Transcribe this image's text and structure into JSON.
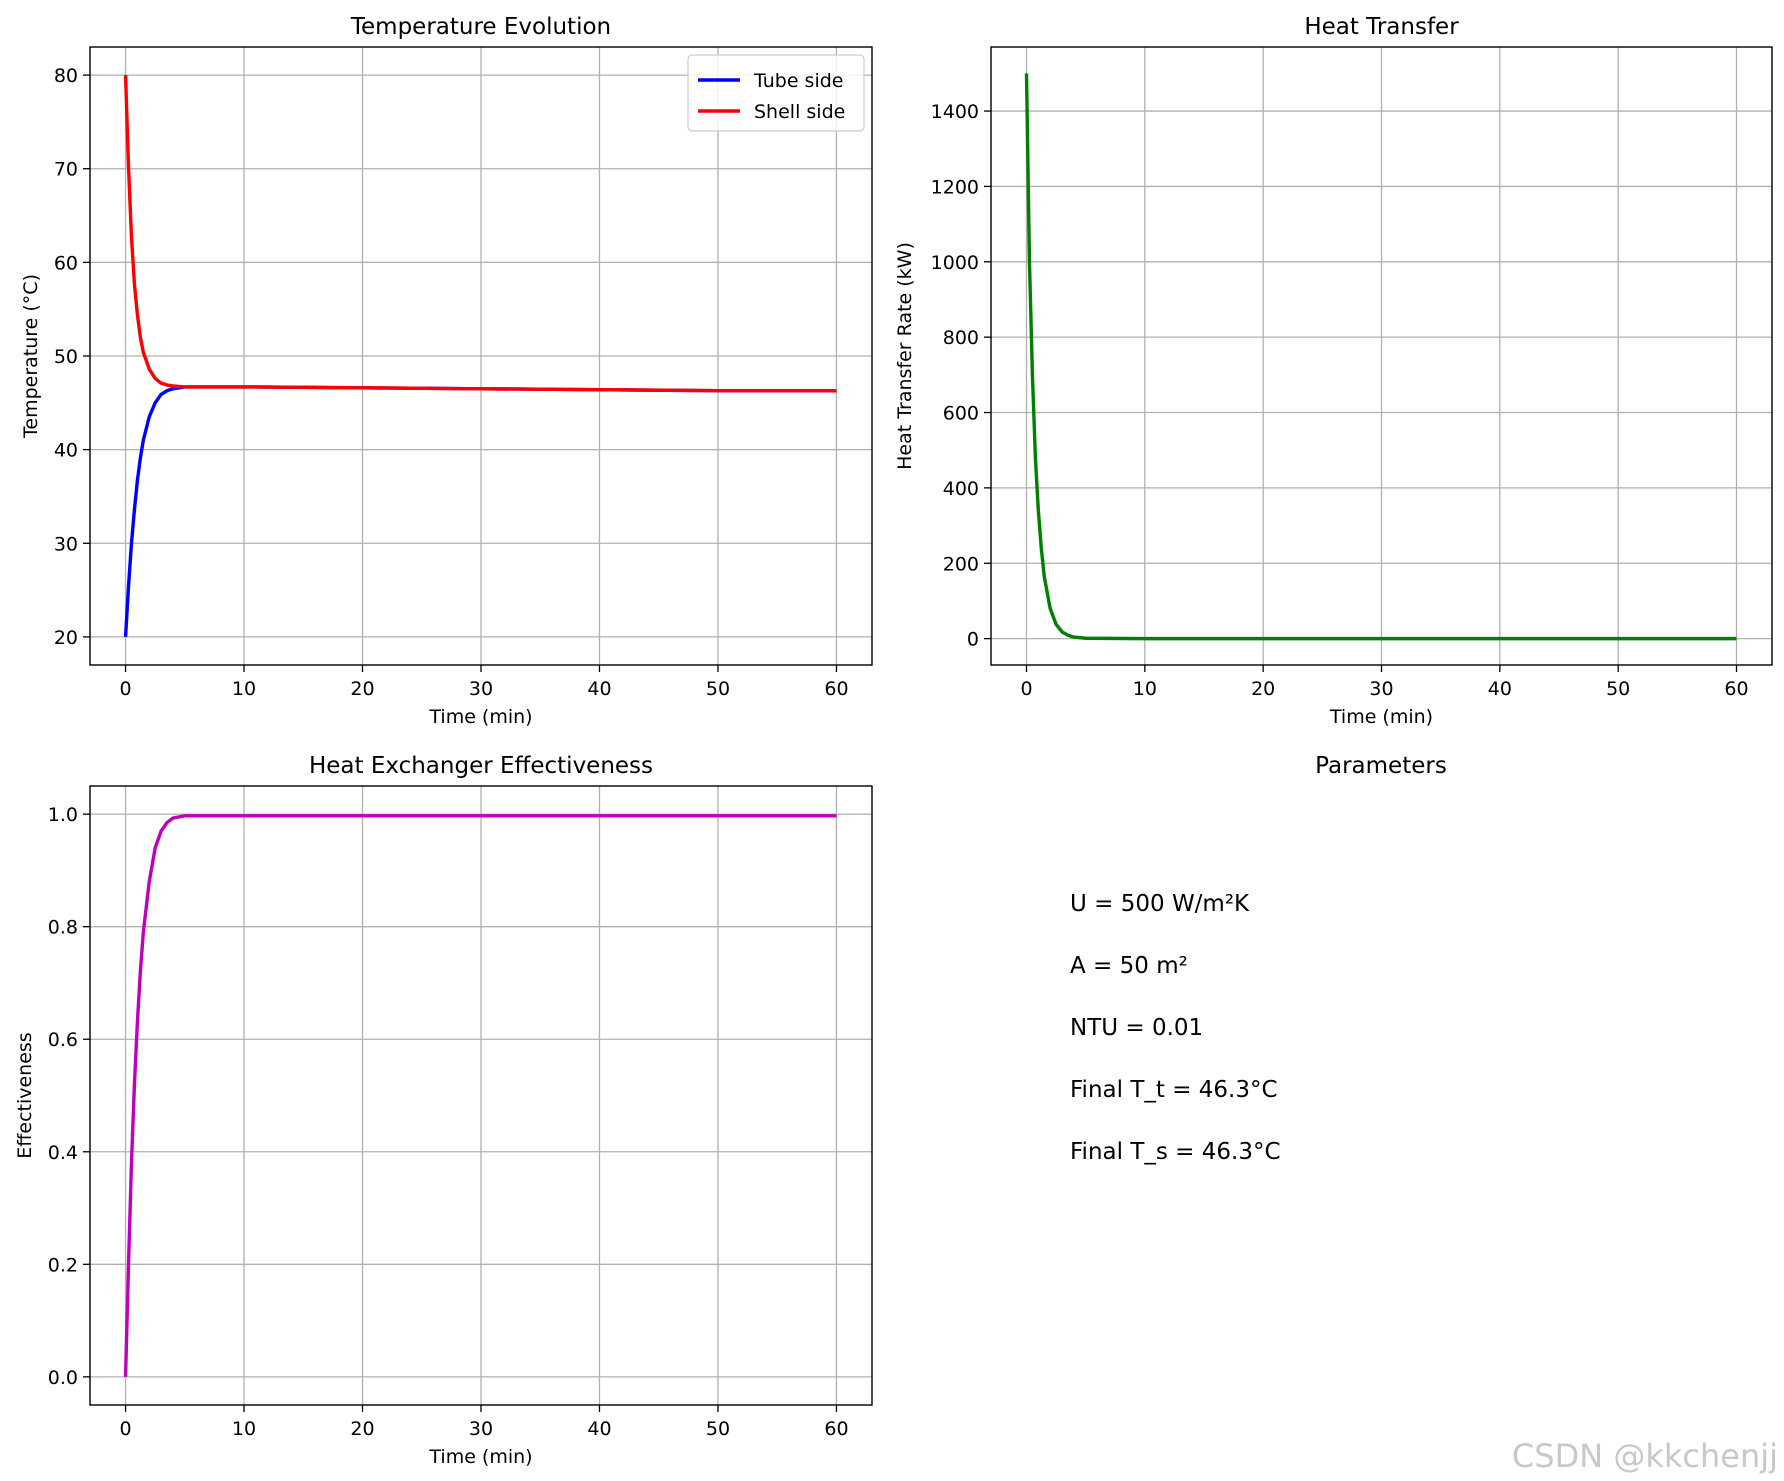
{
  "chart_data": [
    {
      "type": "line",
      "title": "Temperature Evolution",
      "xlabel": "Time (min)",
      "ylabel": "Temperature (°C)",
      "xlim": [
        -3,
        63
      ],
      "ylim": [
        17,
        83
      ],
      "xticks": [
        0,
        10,
        20,
        30,
        40,
        50,
        60
      ],
      "yticks": [
        20,
        30,
        40,
        50,
        60,
        70,
        80
      ],
      "grid": true,
      "legend": "top-right",
      "series": [
        {
          "name": "Tube side",
          "color": "#0000ff",
          "points": [
            [
              0,
              20
            ],
            [
              0.25,
              25.4
            ],
            [
              0.5,
              30
            ],
            [
              0.75,
              33.6
            ],
            [
              1,
              36.7
            ],
            [
              1.25,
              39.1
            ],
            [
              1.5,
              41
            ],
            [
              2,
              43.5
            ],
            [
              2.5,
              45
            ],
            [
              3,
              45.9
            ],
            [
              3.5,
              46.3
            ],
            [
              4,
              46.5
            ],
            [
              5,
              46.7
            ],
            [
              10,
              46.7
            ],
            [
              20,
              46.6
            ],
            [
              30,
              46.5
            ],
            [
              40,
              46.4
            ],
            [
              50,
              46.3
            ],
            [
              60,
              46.3
            ]
          ]
        },
        {
          "name": "Shell side",
          "color": "#ff0000",
          "points": [
            [
              0,
              80
            ],
            [
              0.25,
              70.2
            ],
            [
              0.5,
              62.7
            ],
            [
              0.75,
              57.7
            ],
            [
              1,
              54.4
            ],
            [
              1.25,
              52
            ],
            [
              1.5,
              50.4
            ],
            [
              2,
              48.6
            ],
            [
              2.5,
              47.6
            ],
            [
              3,
              47.1
            ],
            [
              3.5,
              46.9
            ],
            [
              4,
              46.8
            ],
            [
              5,
              46.7
            ],
            [
              10,
              46.7
            ],
            [
              20,
              46.6
            ],
            [
              30,
              46.5
            ],
            [
              40,
              46.4
            ],
            [
              50,
              46.3
            ],
            [
              60,
              46.3
            ]
          ]
        }
      ]
    },
    {
      "type": "line",
      "title": "Heat Transfer",
      "xlabel": "Time (min)",
      "ylabel": "Heat Transfer Rate (kW)",
      "xlim": [
        -3,
        63
      ],
      "ylim": [
        -70,
        1570
      ],
      "xticks": [
        0,
        10,
        20,
        30,
        40,
        50,
        60
      ],
      "yticks": [
        0,
        200,
        400,
        600,
        800,
        1000,
        1200,
        1400
      ],
      "grid": true,
      "series": [
        {
          "color": "#008000",
          "points": [
            [
              0,
              1500
            ],
            [
              0.25,
              1000
            ],
            [
              0.5,
              700
            ],
            [
              0.75,
              480
            ],
            [
              1,
              340
            ],
            [
              1.25,
              240
            ],
            [
              1.5,
              165
            ],
            [
              2,
              80
            ],
            [
              2.5,
              38
            ],
            [
              3,
              18
            ],
            [
              3.5,
              9
            ],
            [
              4,
              4
            ],
            [
              5,
              1
            ],
            [
              10,
              0
            ],
            [
              20,
              0
            ],
            [
              30,
              0
            ],
            [
              40,
              0
            ],
            [
              50,
              0
            ],
            [
              60,
              0
            ]
          ]
        }
      ]
    },
    {
      "type": "line",
      "title": "Heat Exchanger Effectiveness",
      "xlabel": "Time (min)",
      "ylabel": "Effectiveness",
      "xlim": [
        -3,
        63
      ],
      "ylim": [
        -0.05,
        1.05
      ],
      "xticks": [
        0,
        10,
        20,
        30,
        40,
        50,
        60
      ],
      "yticks": [
        "0.0",
        "0.2",
        "0.4",
        "0.6",
        "0.8",
        "1.0"
      ],
      "grid": true,
      "series": [
        {
          "color": "#bf00bf",
          "points": [
            [
              0,
              0
            ],
            [
              0.25,
              0.2
            ],
            [
              0.5,
              0.38
            ],
            [
              0.75,
              0.52
            ],
            [
              1,
              0.63
            ],
            [
              1.25,
              0.72
            ],
            [
              1.5,
              0.79
            ],
            [
              2,
              0.88
            ],
            [
              2.5,
              0.94
            ],
            [
              3,
              0.97
            ],
            [
              3.5,
              0.985
            ],
            [
              4,
              0.993
            ],
            [
              5,
              0.997
            ],
            [
              10,
              0.997
            ],
            [
              20,
              0.997
            ],
            [
              30,
              0.997
            ],
            [
              40,
              0.997
            ],
            [
              50,
              0.997
            ],
            [
              60,
              0.997
            ]
          ]
        }
      ]
    }
  ],
  "parameters": {
    "title": "Parameters",
    "lines": [
      "U = 500 W/m²K",
      "A = 50 m²",
      "NTU = 0.01",
      "Final T_t = 46.3°C",
      "Final T_s = 46.3°C"
    ]
  },
  "watermark": "CSDN @kkchenjj"
}
